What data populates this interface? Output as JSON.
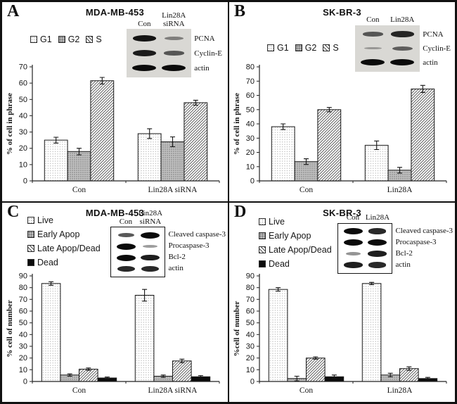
{
  "figure": {
    "background": "#ffffff",
    "border_color": "#111111",
    "bar_outline_color": "#1a1a1a",
    "dead_fill_color": "#0c0c0c"
  },
  "chart_data": [
    {
      "panel": "A",
      "type": "bar",
      "title": "MDA-MB-453",
      "ylabel": "% of cell in phrase",
      "ylim": [
        0,
        70
      ],
      "ystep": 10,
      "grid": false,
      "legend_position": "top-left",
      "legend_orientation": "horizontal",
      "categories": [
        "Con",
        "Lin28A siRNA"
      ],
      "series": [
        {
          "name": "G1",
          "pattern": "dots-light",
          "values": [
            25,
            29
          ],
          "errors": [
            1.8,
            3
          ]
        },
        {
          "name": "G2",
          "pattern": "dots-gray",
          "values": [
            18,
            24
          ],
          "errors": [
            2,
            3
          ]
        },
        {
          "name": "S",
          "pattern": "hatch",
          "values": [
            61.5,
            48
          ],
          "errors": [
            2,
            1.5
          ]
        }
      ]
    },
    {
      "panel": "B",
      "type": "bar",
      "title": "SK-BR-3",
      "ylabel": "% of cell in phrase",
      "ylim": [
        0,
        80
      ],
      "ystep": 10,
      "grid": false,
      "legend_position": "top-left",
      "legend_orientation": "horizontal",
      "categories": [
        "Con",
        "Lin28A"
      ],
      "series": [
        {
          "name": "G1",
          "pattern": "dots-light",
          "values": [
            38,
            25
          ],
          "errors": [
            2,
            3
          ]
        },
        {
          "name": "G2",
          "pattern": "dots-gray",
          "values": [
            13.5,
            7.5
          ],
          "errors": [
            2,
            2
          ]
        },
        {
          "name": "S",
          "pattern": "hatch",
          "values": [
            50,
            64.5
          ],
          "errors": [
            1.5,
            2.5
          ]
        }
      ]
    },
    {
      "panel": "C",
      "type": "bar",
      "title": "MDA-MB-453",
      "ylabel": "% cell of number",
      "ylim": [
        0,
        90
      ],
      "ystep": 10,
      "grid": false,
      "legend_position": "top-left",
      "legend_orientation": "vertical",
      "categories": [
        "Con",
        "Lin28A siRNA"
      ],
      "series": [
        {
          "name": "Live",
          "pattern": "dots-light",
          "values": [
            83.5,
            73.5
          ],
          "errors": [
            1.5,
            5
          ]
        },
        {
          "name": "Early Apop",
          "pattern": "dots-gray",
          "values": [
            5.5,
            4.5
          ],
          "errors": [
            1,
            1
          ]
        },
        {
          "name": "Late Apop/Dead",
          "pattern": "hatch",
          "values": [
            10.5,
            17.5
          ],
          "errors": [
            1,
            1.5
          ]
        },
        {
          "name": "Dead",
          "pattern": "solid",
          "values": [
            3,
            4
          ],
          "errors": [
            0.8,
            1
          ]
        }
      ]
    },
    {
      "panel": "D",
      "type": "bar",
      "title": "SK-BR-3",
      "ylabel": "%cell of number",
      "ylim": [
        0,
        90
      ],
      "ystep": 10,
      "grid": false,
      "legend_position": "top-left",
      "legend_orientation": "vertical",
      "categories": [
        "Con",
        "Lin28A"
      ],
      "series": [
        {
          "name": "Live",
          "pattern": "dots-light",
          "values": [
            78.5,
            83.5
          ],
          "errors": [
            1.5,
            1
          ]
        },
        {
          "name": "Early Apop",
          "pattern": "dots-gray",
          "values": [
            2.5,
            5.5
          ],
          "errors": [
            2,
            1.5
          ]
        },
        {
          "name": "Late Apop/Dead",
          "pattern": "hatch",
          "values": [
            20,
            11
          ],
          "errors": [
            1,
            1.5
          ]
        },
        {
          "name": "Dead",
          "pattern": "solid",
          "values": [
            4,
            2.5
          ],
          "errors": [
            1.5,
            1
          ]
        }
      ]
    }
  ],
  "panels": [
    {
      "letter": "A",
      "blot": {
        "style": "shaded",
        "col_labels": [
          "Con",
          "Lin28A\nsiRNA"
        ],
        "rows": [
          {
            "label": "PCNA",
            "bands": [
              0.95,
              0.3
            ]
          },
          {
            "label": "Cyclin-E",
            "bands": [
              0.9,
              0.55
            ]
          },
          {
            "label": "actin",
            "bands": [
              1,
              1
            ]
          }
        ]
      }
    },
    {
      "letter": "B",
      "blot": {
        "style": "shaded",
        "col_labels": [
          "Con",
          "Lin28A"
        ],
        "rows": [
          {
            "label": "PCNA",
            "bands": [
              0.55,
              0.85
            ]
          },
          {
            "label": "Cyclin-E",
            "bands": [
              0.15,
              0.5
            ]
          },
          {
            "label": "actin",
            "bands": [
              1,
              1
            ]
          }
        ]
      }
    },
    {
      "letter": "C",
      "blot": {
        "style": "boxed",
        "col_labels": [
          "Con",
          "Lin28A\nsiRNA"
        ],
        "rows": [
          {
            "label": "Cleaved caspase-3",
            "bands": [
              0.6,
              1
            ]
          },
          {
            "label": "Procaspase-3",
            "bands": [
              1,
              0.25
            ]
          },
          {
            "label": "Bcl-2",
            "bands": [
              1,
              0.9
            ]
          },
          {
            "label": "actin",
            "bands": [
              0.85,
              0.85
            ]
          }
        ]
      }
    },
    {
      "letter": "D",
      "blot": {
        "style": "boxed",
        "col_labels": [
          "Con",
          "Lin28A"
        ],
        "rows": [
          {
            "label": "Cleaved caspase-3",
            "bands": [
              1,
              0.85
            ]
          },
          {
            "label": "Procaspase-3",
            "bands": [
              1,
              1
            ]
          },
          {
            "label": "Bcl-2",
            "bands": [
              0.3,
              0.9
            ]
          },
          {
            "label": "actin",
            "bands": [
              0.9,
              0.85
            ]
          }
        ]
      }
    }
  ]
}
